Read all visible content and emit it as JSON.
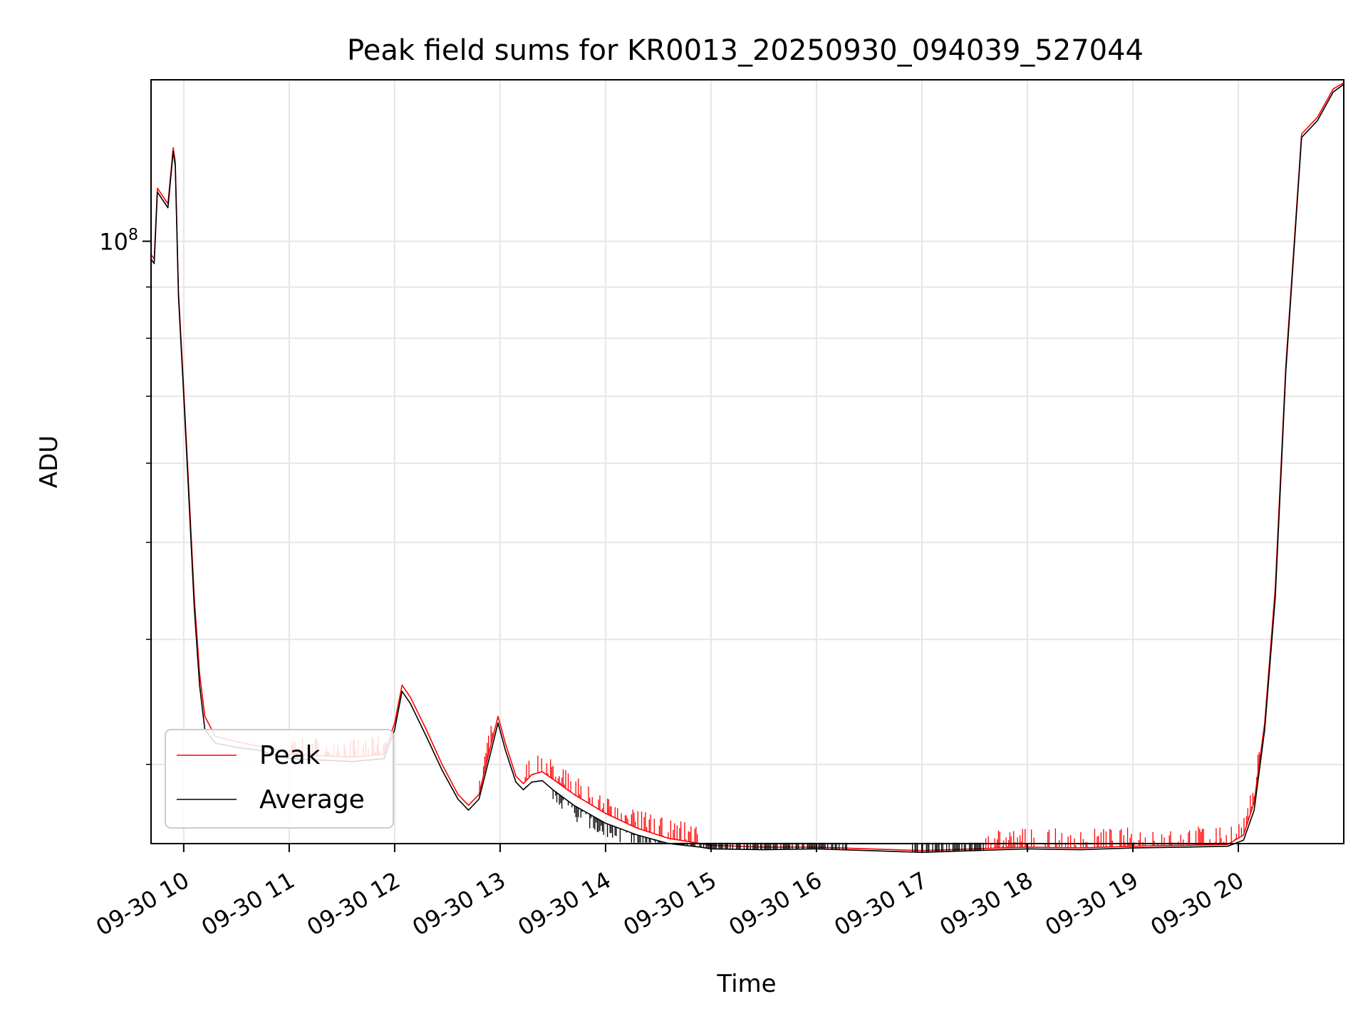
{
  "chart_data": {
    "type": "line",
    "title": "Peak field sums for KR0013_20250930_094039_527044",
    "xlabel": "Time",
    "ylabel": "ADU",
    "yscale": "log",
    "xlim_hours": [
      9.69,
      21.0
    ],
    "ylim": [
      25000000,
      145000000
    ],
    "grid": true,
    "legend_position": "lower-left",
    "x_ticks": [
      {
        "value": 10,
        "label": "09-30 10"
      },
      {
        "value": 11,
        "label": "09-30 11"
      },
      {
        "value": 12,
        "label": "09-30 12"
      },
      {
        "value": 13,
        "label": "09-30 13"
      },
      {
        "value": 14,
        "label": "09-30 14"
      },
      {
        "value": 15,
        "label": "09-30 15"
      },
      {
        "value": 16,
        "label": "09-30 16"
      },
      {
        "value": 17,
        "label": "09-30 17"
      },
      {
        "value": 18,
        "label": "09-30 18"
      },
      {
        "value": 19,
        "label": "09-30 19"
      },
      {
        "value": 20,
        "label": "09-30 20"
      }
    ],
    "y_major_ticks": [
      {
        "value": 100000000,
        "base": "10",
        "exp": "8"
      }
    ],
    "y_minor_ticks": [
      30000000,
      40000000,
      50000000,
      60000000,
      70000000,
      80000000,
      90000000
    ],
    "series": [
      {
        "name": "Peak",
        "color": "#ff0000",
        "points": [
          [
            9.69,
            97000000
          ],
          [
            9.72,
            96000000
          ],
          [
            9.75,
            113000000
          ],
          [
            9.8,
            111000000
          ],
          [
            9.85,
            109000000
          ],
          [
            9.9,
            124000000
          ],
          [
            9.92,
            120000000
          ],
          [
            9.95,
            89000000
          ],
          [
            10.0,
            71000000
          ],
          [
            10.05,
            56000000
          ],
          [
            10.1,
            44000000
          ],
          [
            10.15,
            37000000
          ],
          [
            10.2,
            33500000
          ],
          [
            10.3,
            32000000
          ],
          [
            10.5,
            31600000
          ],
          [
            10.7,
            31300000
          ],
          [
            10.9,
            31000000
          ],
          [
            11.0,
            30700000
          ],
          [
            11.3,
            30600000
          ],
          [
            11.6,
            30500000
          ],
          [
            11.9,
            30700000
          ],
          [
            12.0,
            33000000
          ],
          [
            12.07,
            36000000
          ],
          [
            12.15,
            35000000
          ],
          [
            12.3,
            32500000
          ],
          [
            12.45,
            30000000
          ],
          [
            12.6,
            28000000
          ],
          [
            12.7,
            27300000
          ],
          [
            12.8,
            28000000
          ],
          [
            12.9,
            31000000
          ],
          [
            12.98,
            33500000
          ],
          [
            13.05,
            31500000
          ],
          [
            13.15,
            29200000
          ],
          [
            13.22,
            28700000
          ],
          [
            13.3,
            29300000
          ],
          [
            13.4,
            29500000
          ],
          [
            13.5,
            29000000
          ],
          [
            13.7,
            28000000
          ],
          [
            14.0,
            26800000
          ],
          [
            14.3,
            25900000
          ],
          [
            14.6,
            25300000
          ],
          [
            14.9,
            25000000
          ],
          [
            15.0,
            24900000
          ],
          [
            15.5,
            24800000
          ],
          [
            16.0,
            24800000
          ],
          [
            16.5,
            24700000
          ],
          [
            17.0,
            24600000
          ],
          [
            17.5,
            24700000
          ],
          [
            18.0,
            24800000
          ],
          [
            18.5,
            24750000
          ],
          [
            19.0,
            24850000
          ],
          [
            19.5,
            24900000
          ],
          [
            19.9,
            24950000
          ],
          [
            20.05,
            25500000
          ],
          [
            20.15,
            27500000
          ],
          [
            20.25,
            33000000
          ],
          [
            20.35,
            45000000
          ],
          [
            20.45,
            75000000
          ],
          [
            20.6,
            128000000
          ],
          [
            20.75,
            133000000
          ],
          [
            20.9,
            142000000
          ],
          [
            21.0,
            144000000
          ]
        ]
      },
      {
        "name": "Average",
        "color": "#000000",
        "points": [
          [
            9.69,
            96000000
          ],
          [
            9.72,
            95000000
          ],
          [
            9.75,
            112000000
          ],
          [
            9.8,
            110000000
          ],
          [
            9.85,
            108000000
          ],
          [
            9.9,
            123000000
          ],
          [
            9.92,
            119000000
          ],
          [
            9.95,
            88000000
          ],
          [
            10.0,
            70000000
          ],
          [
            10.05,
            55000000
          ],
          [
            10.1,
            43000000
          ],
          [
            10.15,
            36000000
          ],
          [
            10.2,
            32500000
          ],
          [
            10.3,
            31500000
          ],
          [
            10.5,
            31200000
          ],
          [
            10.7,
            31000000
          ],
          [
            10.9,
            30600000
          ],
          [
            11.0,
            30400000
          ],
          [
            11.3,
            30300000
          ],
          [
            11.6,
            30200000
          ],
          [
            11.9,
            30400000
          ],
          [
            12.0,
            32500000
          ],
          [
            12.07,
            35500000
          ],
          [
            12.15,
            34500000
          ],
          [
            12.3,
            32000000
          ],
          [
            12.45,
            29600000
          ],
          [
            12.6,
            27700000
          ],
          [
            12.7,
            27000000
          ],
          [
            12.8,
            27700000
          ],
          [
            12.9,
            30500000
          ],
          [
            12.98,
            33000000
          ],
          [
            13.05,
            31000000
          ],
          [
            13.15,
            28800000
          ],
          [
            13.22,
            28300000
          ],
          [
            13.3,
            28800000
          ],
          [
            13.4,
            28900000
          ],
          [
            13.5,
            28300000
          ],
          [
            13.7,
            27300000
          ],
          [
            14.0,
            26200000
          ],
          [
            14.3,
            25500000
          ],
          [
            14.6,
            25000000
          ],
          [
            14.9,
            24800000
          ],
          [
            15.0,
            24700000
          ],
          [
            15.5,
            24650000
          ],
          [
            16.0,
            24700000
          ],
          [
            16.5,
            24600000
          ],
          [
            17.0,
            24500000
          ],
          [
            17.5,
            24600000
          ],
          [
            18.0,
            24700000
          ],
          [
            18.5,
            24650000
          ],
          [
            19.0,
            24750000
          ],
          [
            19.5,
            24800000
          ],
          [
            19.9,
            24850000
          ],
          [
            20.05,
            25200000
          ],
          [
            20.15,
            27000000
          ],
          [
            20.25,
            32500000
          ],
          [
            20.35,
            44000000
          ],
          [
            20.45,
            74000000
          ],
          [
            20.6,
            127000000
          ],
          [
            20.75,
            132000000
          ],
          [
            20.9,
            141000000
          ],
          [
            21.0,
            143500000
          ]
        ]
      }
    ]
  },
  "legend": {
    "entries": [
      {
        "label": "Peak",
        "color": "#ff0000"
      },
      {
        "label": "Average",
        "color": "#000000"
      }
    ]
  }
}
